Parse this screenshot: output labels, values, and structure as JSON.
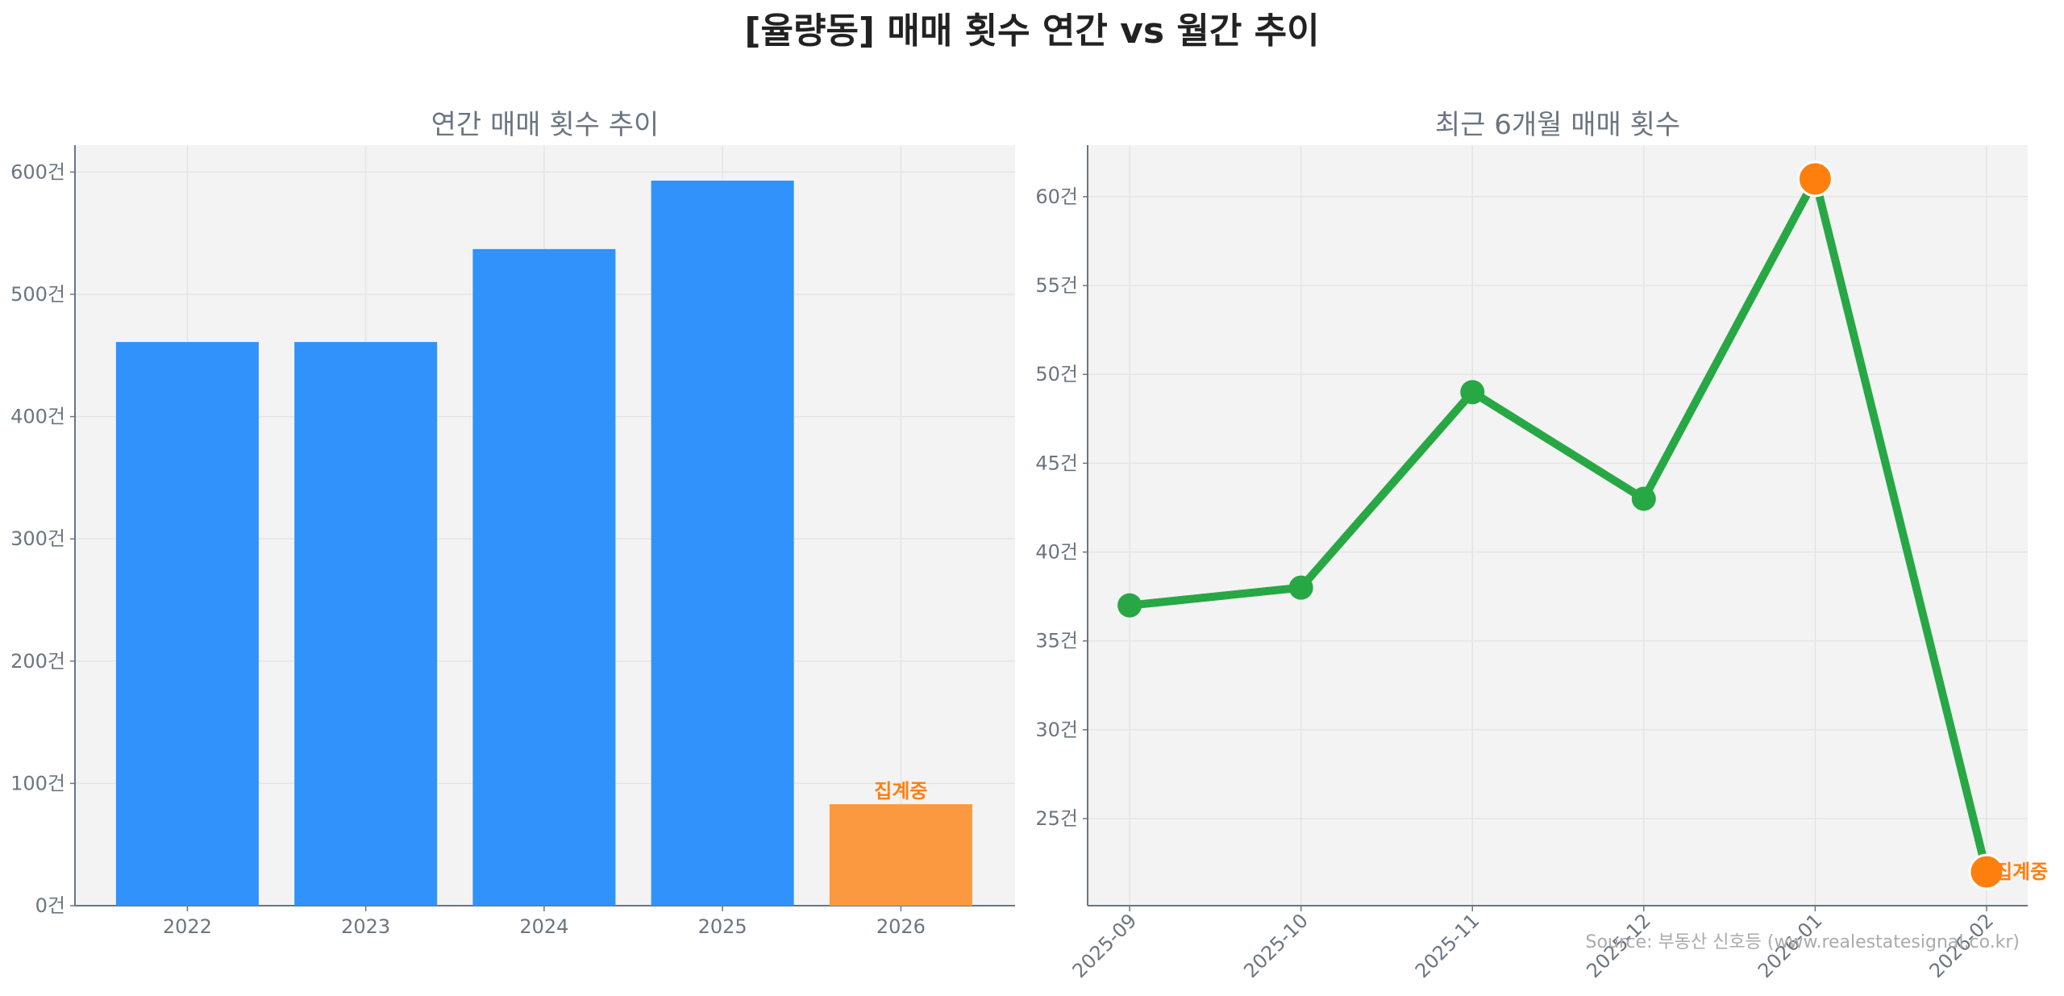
{
  "title": "[율량동] 매매 횟수 연간 vs 월간 추이",
  "source": "Source: 부동산 신호등 (www.realestatesignal.co.kr)",
  "colors": {
    "bar": "#3092fa",
    "bar_partial": "#fa9940",
    "line": "#28a745",
    "highlight": "#ff7f0e",
    "axes_bg": "#f3f3f3"
  },
  "chart_data": [
    {
      "type": "bar",
      "title": "연간 매매 횟수 추이",
      "categories": [
        "2022",
        "2023",
        "2024",
        "2025",
        "2026"
      ],
      "values": [
        461,
        461,
        537,
        593,
        83
      ],
      "partial_index": 4,
      "partial_label": "집계중",
      "ylim": [
        0,
        622
      ],
      "yticks": [
        0,
        100,
        200,
        300,
        400,
        500,
        600
      ],
      "ytick_suffix": "건",
      "grid": true
    },
    {
      "type": "line",
      "title": "최근 6개월 매매 횟수",
      "categories": [
        "2025-09",
        "2025-10",
        "2025-11",
        "2025-12",
        "2026-01",
        "2026-02"
      ],
      "values": [
        37,
        38,
        49,
        43,
        61,
        22
      ],
      "highlight_indices": [
        4,
        5
      ],
      "partial_index": 5,
      "partial_label": "집계중",
      "ylim": [
        20.1,
        62.9
      ],
      "yticks": [
        25,
        30,
        35,
        40,
        45,
        50,
        55,
        60
      ],
      "ytick_suffix": "건",
      "grid": true
    }
  ]
}
